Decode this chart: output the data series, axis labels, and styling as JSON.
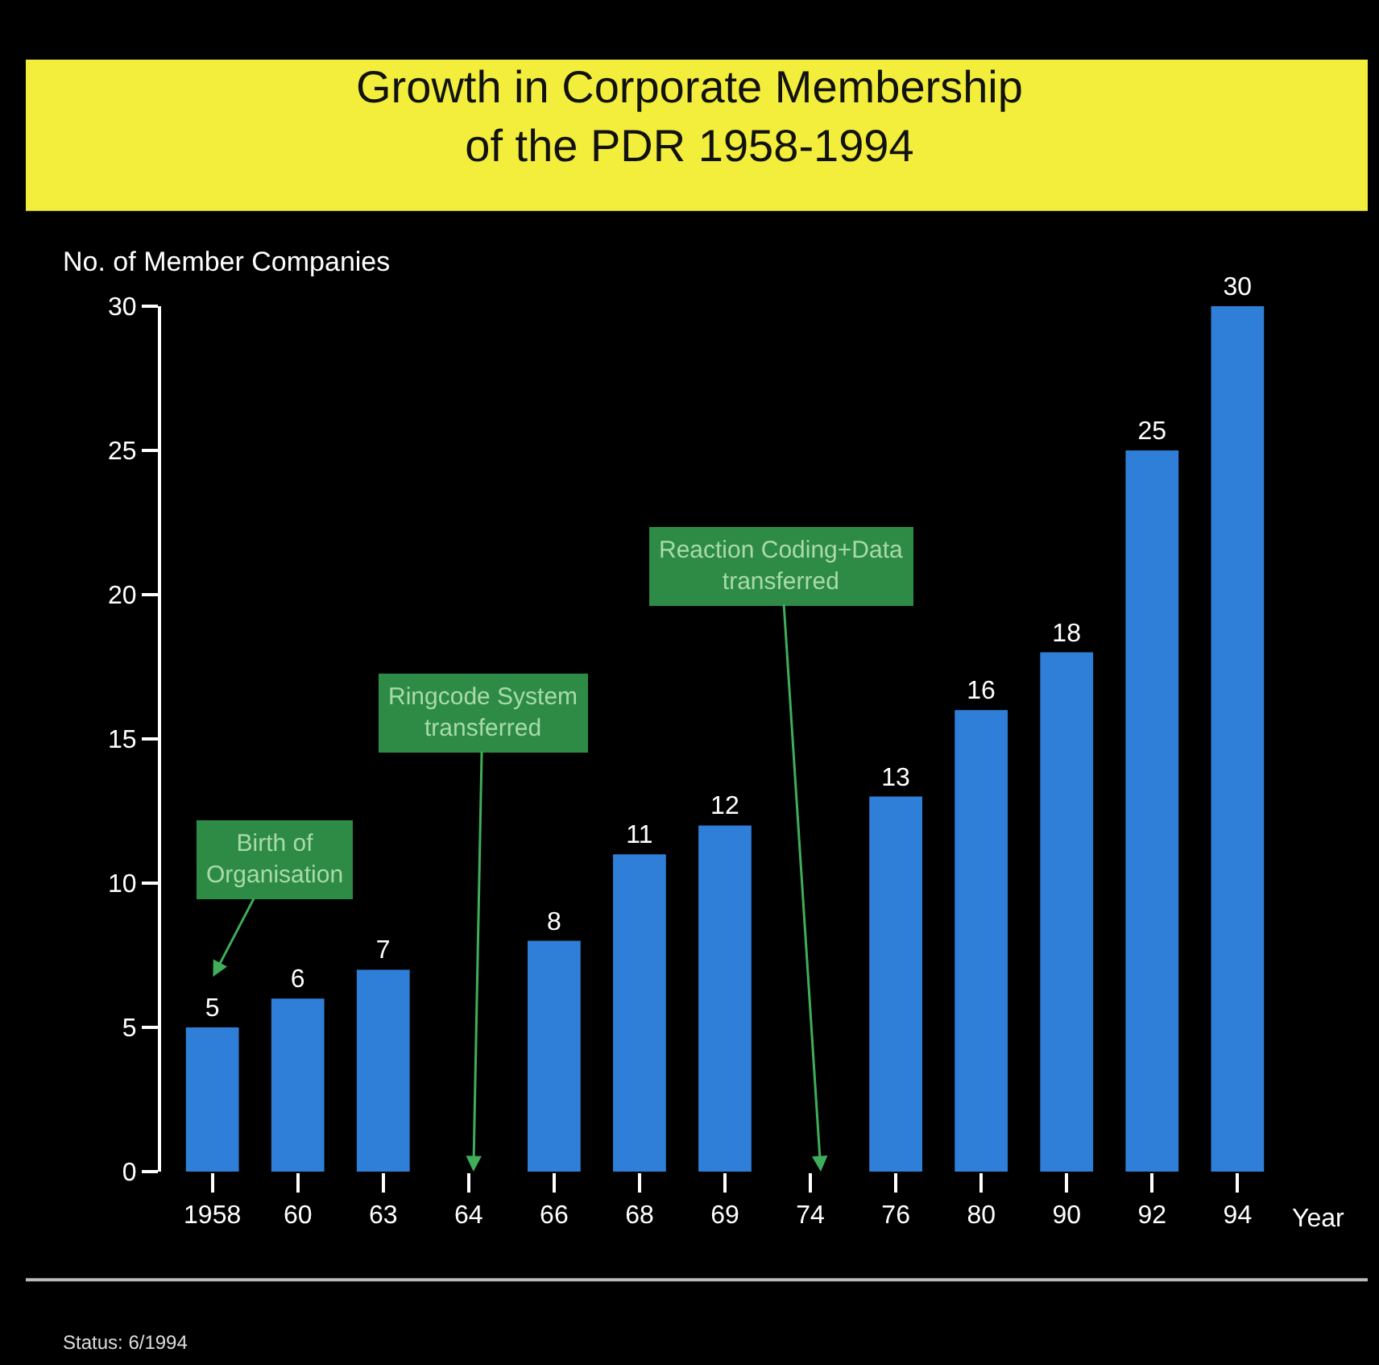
{
  "chart_data": {
    "type": "bar",
    "title": "Growth in Corporate Membership\nof the PDR 1958-1994",
    "ylabel": "No. of Member Companies",
    "xlabel": "Year",
    "categories": [
      "1958",
      "60",
      "63",
      "64",
      "66",
      "68",
      "69",
      "74",
      "76",
      "80",
      "90",
      "92",
      "94"
    ],
    "values": [
      5,
      6,
      7,
      null,
      8,
      11,
      12,
      null,
      13,
      16,
      18,
      25,
      30
    ],
    "color": "#2f7fd8",
    "data_labels": true,
    "ylim": [
      0,
      30
    ],
    "yticks": [
      0,
      5,
      10,
      15,
      20,
      25,
      30
    ],
    "annotations": [
      "Birth of\nOrganisation",
      "Ringcode System\ntransferred",
      "Reaction Coding+Data\ntransferred",
      "Status: 6/1994"
    ]
  }
}
